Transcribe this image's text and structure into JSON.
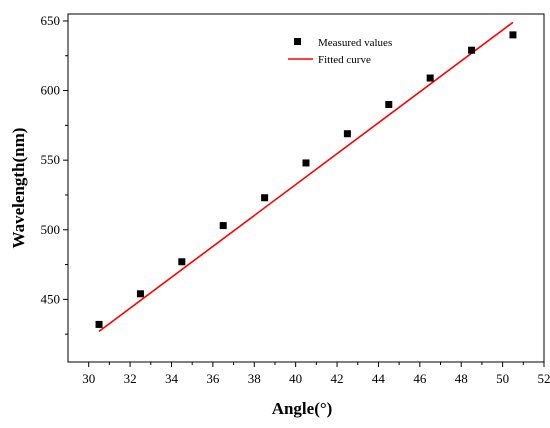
{
  "chart_data": {
    "type": "scatter",
    "title": "",
    "xlabel": "Angle(°)",
    "ylabel": "Wavelength(nm)",
    "xlim": [
      29,
      52
    ],
    "ylim": [
      405,
      655
    ],
    "x_ticks": [
      30,
      32,
      34,
      36,
      38,
      40,
      42,
      44,
      46,
      48,
      50,
      52
    ],
    "y_ticks": [
      450,
      500,
      550,
      600,
      650
    ],
    "grid": false,
    "legend_position": "top-center",
    "series": [
      {
        "name": "Measured values",
        "kind": "scatter",
        "marker": "square",
        "color": "#000000",
        "x": [
          30.5,
          32.5,
          34.5,
          36.5,
          38.5,
          40.5,
          42.5,
          44.5,
          46.5,
          48.5,
          50.5
        ],
        "y": [
          432,
          454,
          477,
          503,
          523,
          548,
          569,
          590,
          609,
          629,
          640
        ]
      },
      {
        "name": "Fitted curve",
        "kind": "line",
        "color": "#ff0000",
        "x": [
          30.5,
          50.5
        ],
        "y": [
          427,
          649
        ]
      }
    ]
  }
}
